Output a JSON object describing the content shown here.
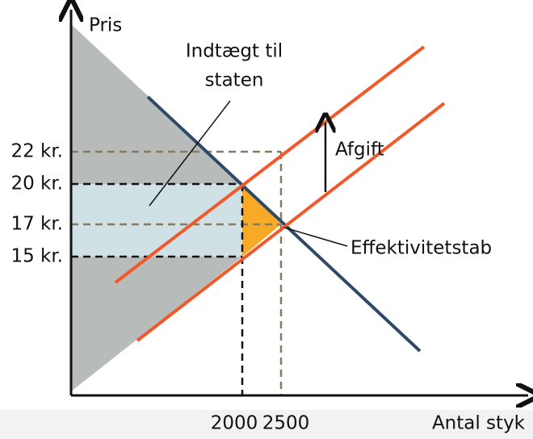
{
  "axes": {
    "y_label": "Pris",
    "x_label": "Antal styk"
  },
  "y_ticks": [
    "22 kr.",
    "20 kr.",
    "17 kr.",
    "15 kr."
  ],
  "x_ticks": [
    "2000",
    "2500"
  ],
  "annotations": {
    "revenue": [
      "Indtægt til",
      "staten"
    ],
    "tax": "Afgift",
    "loss": "Effektivitetstab"
  }
}
